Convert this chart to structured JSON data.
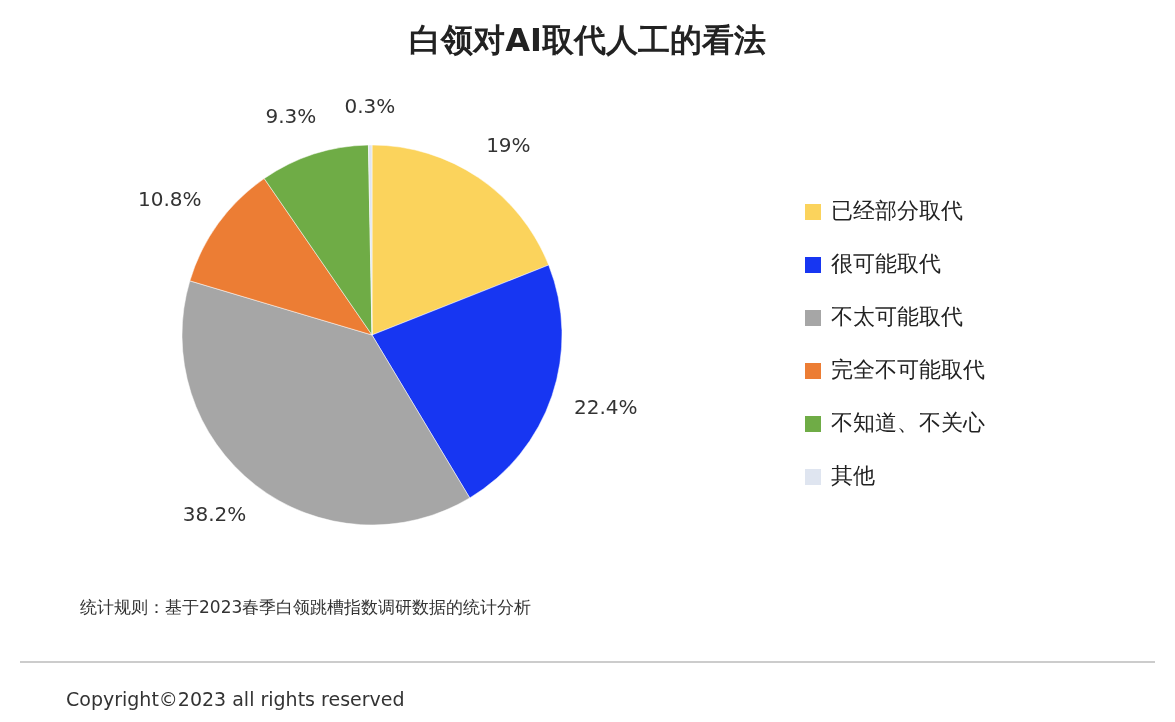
{
  "chart_data": {
    "type": "pie",
    "title": "白领对AI取代人工的看法",
    "categories": [
      "已经部分取代",
      "很可能取代",
      "不太可能取代",
      "完全不可能取代",
      "不知道、不关心",
      "其他"
    ],
    "values": [
      19,
      22.4,
      38.2,
      10.8,
      9.3,
      0.3
    ],
    "value_labels": [
      "19%",
      "22.4%",
      "38.2%",
      "10.8%",
      "9.3%",
      "0.3%"
    ],
    "colors": [
      "#fbd35c",
      "#1736f2",
      "#a6a6a6",
      "#ec7d34",
      "#6fac46",
      "#dfe5f0"
    ],
    "legend": "right",
    "annotations": [
      "统计规则：基于2023春季白领跳槽指数调研数据的统计分析",
      "Copyright©2023 all rights reserved"
    ]
  }
}
